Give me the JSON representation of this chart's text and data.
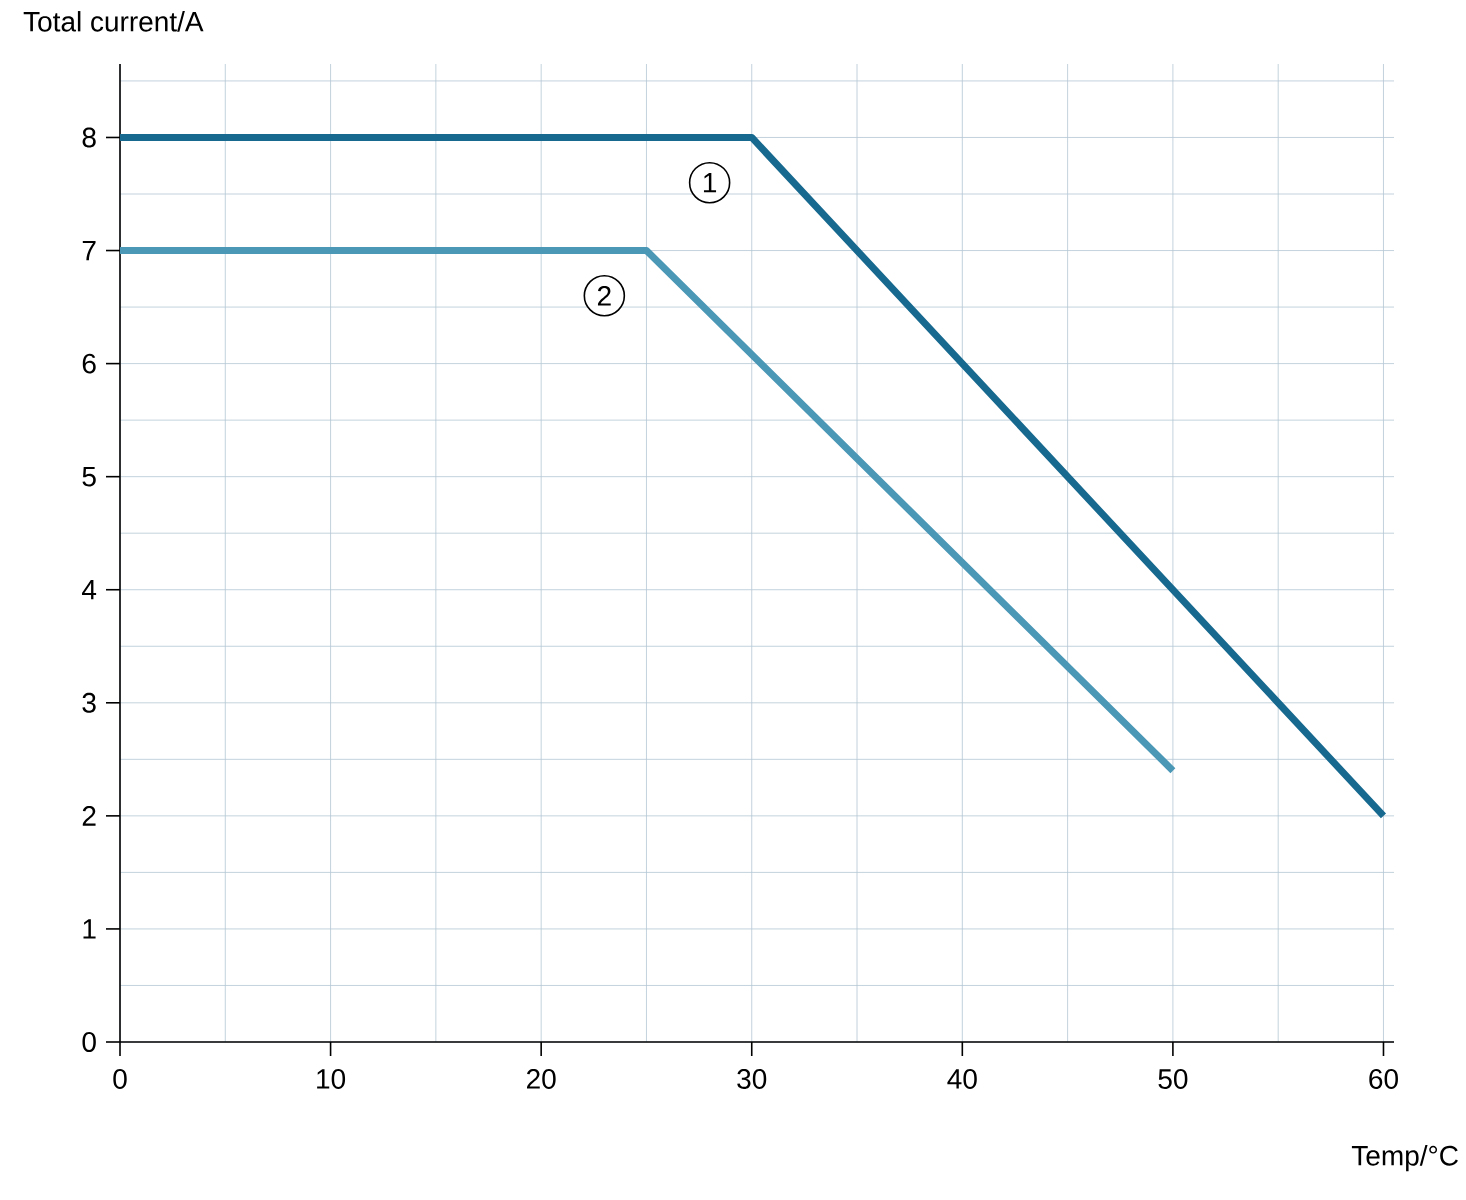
{
  "chart_data": {
    "type": "line",
    "xlabel": "Temp/°C",
    "ylabel": "Total current/A",
    "series": [
      {
        "color": "#17698f",
        "x": [
          0,
          30,
          60
        ],
        "values": [
          8,
          8,
          2
        ]
      },
      {
        "color": "#4a97b6",
        "x": [
          0,
          25,
          50
        ],
        "values": [
          7,
          7,
          2.4
        ]
      }
    ],
    "xlim": [
      0,
      60.5
    ],
    "ylim": [
      0,
      8.65
    ],
    "xticks": [
      0,
      {
        "value": 5,
        "label": null
      },
      10,
      {
        "value": 15,
        "label": null
      },
      20,
      {
        "value": 25,
        "label": null
      },
      30,
      {
        "value": 35,
        "label": null
      },
      40,
      {
        "value": 45,
        "label": null
      },
      50,
      {
        "value": 55,
        "label": null
      },
      60
    ],
    "yticks": [
      0,
      {
        "value": 0.5,
        "label": null
      },
      1,
      {
        "value": 1.5,
        "label": null
      },
      2,
      {
        "value": 2.5,
        "label": null
      },
      3,
      {
        "value": 3.5,
        "label": null
      },
      4,
      {
        "value": 4.5,
        "label": null
      },
      5,
      {
        "value": 5.5,
        "label": null
      },
      6,
      {
        "value": 6.5,
        "label": null
      },
      7,
      {
        "value": 7.5,
        "label": null
      },
      8,
      {
        "value": 8.5,
        "label": null
      }
    ],
    "grid": true,
    "marker": "none",
    "line_style": "solid",
    "annotations": [
      {
        "text": "1",
        "x": 28,
        "y": 7.6
      },
      {
        "text": "2",
        "x": 23,
        "y": 6.6
      }
    ]
  }
}
